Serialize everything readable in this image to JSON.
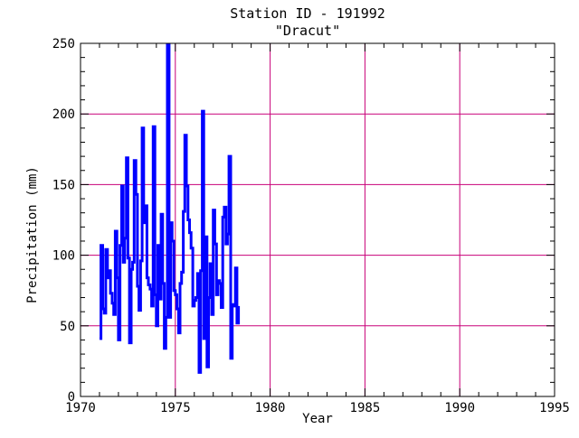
{
  "chart_data": {
    "type": "line",
    "title": "Station ID - 191992",
    "subtitle": "\"Dracut\"",
    "xlabel": "Year",
    "ylabel": "Precipitation (mm)",
    "xlim": [
      1970,
      1995
    ],
    "ylim": [
      0,
      250
    ],
    "xticks": [
      1970,
      1975,
      1980,
      1985,
      1990,
      1995
    ],
    "yticks": [
      0,
      50,
      100,
      150,
      200,
      250
    ],
    "grid": true,
    "series": [
      {
        "color": "#0000ff",
        "x": [
          1971.0,
          1971.08,
          1971.17,
          1971.25,
          1971.33,
          1971.42,
          1971.5,
          1971.58,
          1971.67,
          1971.75,
          1971.83,
          1971.92,
          1972.0,
          1972.08,
          1972.17,
          1972.25,
          1972.33,
          1972.42,
          1972.5,
          1972.58,
          1972.67,
          1972.75,
          1972.83,
          1972.92,
          1973.0,
          1973.08,
          1973.17,
          1973.25,
          1973.33,
          1973.42,
          1973.5,
          1973.58,
          1973.67,
          1973.75,
          1973.83,
          1973.92,
          1974.0,
          1974.08,
          1974.17,
          1974.25,
          1974.33,
          1974.42,
          1974.5,
          1974.58,
          1974.67,
          1974.75,
          1974.83,
          1974.92,
          1975.0,
          1975.08,
          1975.17,
          1975.25,
          1975.33,
          1975.42,
          1975.5,
          1975.58,
          1975.67,
          1975.75,
          1975.83,
          1975.92,
          1976.0,
          1976.08,
          1976.17,
          1976.25,
          1976.33,
          1976.42,
          1976.5,
          1976.58,
          1976.67,
          1976.75,
          1976.83,
          1976.92,
          1977.0,
          1977.08,
          1977.17,
          1977.25,
          1977.33,
          1977.42,
          1977.5,
          1977.58,
          1977.67,
          1977.75,
          1977.83,
          1977.92,
          1978.0,
          1978.08,
          1978.17,
          1978.25,
          1978.33
        ],
        "y": [
          41,
          107,
          62,
          59,
          104,
          84,
          89,
          73,
          66,
          58,
          117,
          84,
          40,
          107,
          149,
          95,
          112,
          169,
          98,
          38,
          90,
          95,
          167,
          143,
          78,
          61,
          96,
          190,
          123,
          135,
          84,
          79,
          76,
          64,
          191,
          72,
          50,
          107,
          69,
          129,
          80,
          34,
          56,
          249,
          56,
          123,
          110,
          75,
          72,
          62,
          45,
          80,
          88,
          131,
          185,
          149,
          125,
          116,
          105,
          64,
          68,
          70,
          87,
          17,
          89,
          202,
          41,
          113,
          21,
          70,
          94,
          58,
          132,
          108,
          72,
          82,
          80,
          63,
          127,
          134,
          108,
          115,
          170,
          27,
          65,
          64,
          91,
          52,
          64
        ]
      }
    ]
  }
}
